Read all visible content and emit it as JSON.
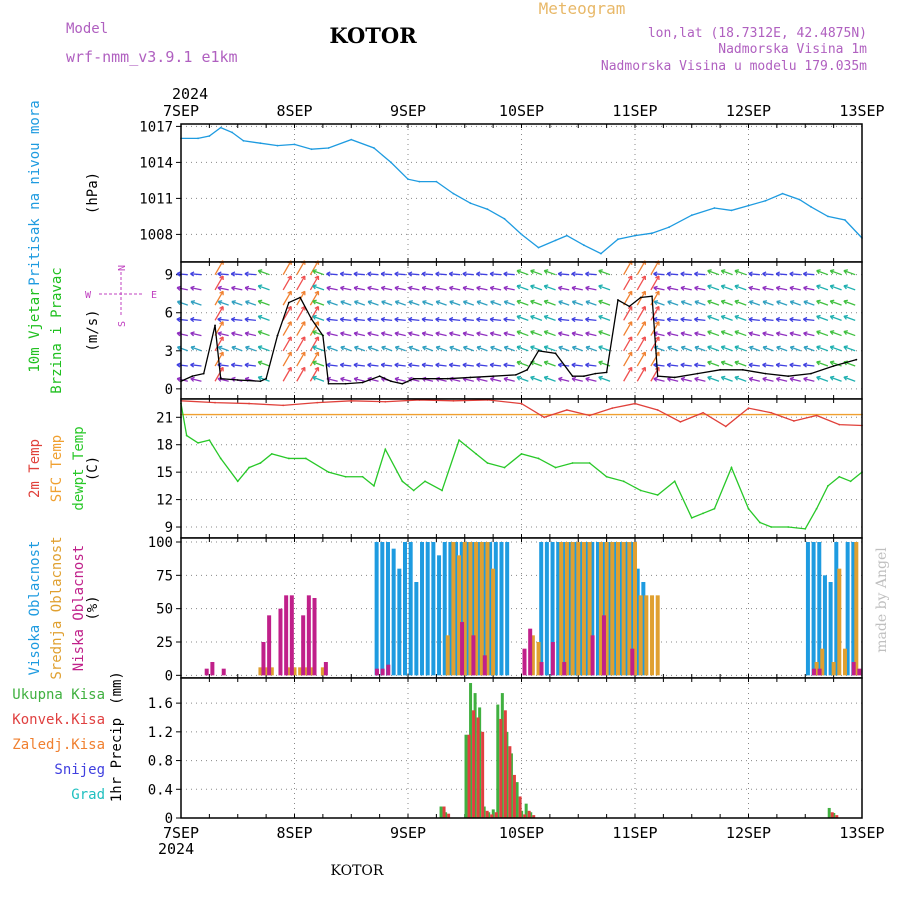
{
  "header": {
    "model_label": "Model",
    "model_name": "wrf-nmm_v3.9.1 e1km",
    "title": "KOTOR",
    "product": "Meteogram",
    "lonlat": "lon,lat (18.7312E, 42.4875N)",
    "altitude": "Nadmorska Visina 1m",
    "model_altitude": "Nadmorska Visina u modelu 179.035m",
    "footer": "KOTOR",
    "credit": "made by Angel"
  },
  "colors": {
    "pressure": "#1e9be0",
    "temp2m": "#e0403a",
    "sfc": "#f0a030",
    "dewpt": "#28c828",
    "high_cloud": "#1e9be0",
    "mid_cloud": "#e0a030",
    "low_cloud": "#c0208a",
    "precip_total": "#40b040",
    "precip_conv": "#e04040",
    "precip_frz": "#f08030",
    "snow": "#4040e0",
    "hail": "#20c0c0",
    "wind_label": "#20c020",
    "compass": "#c040c0"
  },
  "time_axis": {
    "year": "2024",
    "ticks": [
      "7SEP",
      "8SEP",
      "9SEP",
      "10SEP",
      "11SEP",
      "12SEP",
      "13SEP"
    ]
  },
  "chart_data": [
    {
      "type": "line",
      "panel": "pressure",
      "ylabel_lines": [
        "Pritisak na nivou mora"
      ],
      "unit": "(hPa)",
      "x_unit": "days since 7SEP 00Z",
      "ylim": [
        1005.7,
        1017.2
      ],
      "yticks": [
        "1017",
        "1014",
        "1011",
        "1008"
      ],
      "ytick_values": [
        1017,
        1014,
        1011,
        1008
      ],
      "grid": true,
      "series": [
        {
          "key": "pressure",
          "x": [
            0,
            0.15,
            0.25,
            0.35,
            0.45,
            0.55,
            0.7,
            0.85,
            1.0,
            1.15,
            1.3,
            1.5,
            1.7,
            1.85,
            2.0,
            2.1,
            2.25,
            2.4,
            2.55,
            2.7,
            2.85,
            3.0,
            3.15,
            3.3,
            3.4,
            3.55,
            3.7,
            3.85,
            4.0,
            4.15,
            4.3,
            4.5,
            4.7,
            4.85,
            5.0,
            5.15,
            5.3,
            5.45,
            5.55,
            5.7,
            5.85,
            6.0
          ],
          "values": [
            1016.0,
            1016.0,
            1016.2,
            1016.9,
            1016.5,
            1015.8,
            1015.6,
            1015.4,
            1015.5,
            1015.1,
            1015.2,
            1015.9,
            1015.2,
            1014.0,
            1012.6,
            1012.4,
            1012.4,
            1011.4,
            1010.6,
            1010.1,
            1009.3,
            1008.0,
            1006.9,
            1007.5,
            1007.9,
            1007.1,
            1006.4,
            1007.6,
            1007.9,
            1008.1,
            1008.6,
            1009.6,
            1010.2,
            1010.0,
            1010.4,
            1010.8,
            1011.4,
            1010.9,
            1010.3,
            1009.5,
            1009.2,
            1007.7
          ]
        }
      ]
    },
    {
      "type": "line",
      "panel": "wind",
      "ylabel_lines": [
        "10m Vjetar",
        "Brzina i Pravac"
      ],
      "unit": "(m/s)",
      "x_unit": "days since 7SEP 00Z",
      "ylim": [
        -0.8,
        10
      ],
      "yticks": [
        "9",
        "6",
        "3",
        "0"
      ],
      "ytick_values": [
        9,
        6,
        3,
        0
      ],
      "grid": true,
      "compass": [
        "N",
        "W",
        "E",
        "S"
      ],
      "series": [
        {
          "key": "wind_speed",
          "x": [
            0,
            0.1,
            0.2,
            0.3,
            0.35,
            0.5,
            0.7,
            0.75,
            0.85,
            0.95,
            1.05,
            1.15,
            1.25,
            1.3,
            1.45,
            1.6,
            1.75,
            1.85,
            1.95,
            2.05,
            2.15,
            2.35,
            2.55,
            2.75,
            2.95,
            3.05,
            3.15,
            3.3,
            3.45,
            3.55,
            3.65,
            3.75,
            3.85,
            3.95,
            4.05,
            4.15,
            4.2,
            4.35,
            4.55,
            4.75,
            4.95,
            5.15,
            5.35,
            5.55,
            5.75,
            5.95
          ],
          "values": [
            0.6,
            1.0,
            1.2,
            5.0,
            0.8,
            0.7,
            0.6,
            0.8,
            4.2,
            6.8,
            7.2,
            5.5,
            4.2,
            0.4,
            0.4,
            0.5,
            1.0,
            0.6,
            0.4,
            0.8,
            0.8,
            0.8,
            0.9,
            1.0,
            1.1,
            1.5,
            3.0,
            2.8,
            1.0,
            1.0,
            1.2,
            1.3,
            7.0,
            6.5,
            7.2,
            7.3,
            1.0,
            0.9,
            1.2,
            1.5,
            1.5,
            1.2,
            1.0,
            1.2,
            1.8,
            2.3
          ]
        }
      ]
    },
    {
      "type": "line",
      "panel": "temperature",
      "ylabel_lines": [
        "2m Temp",
        "SFC Temp",
        "dewpt Temp"
      ],
      "unit": "(C)",
      "x_unit": "days since 7SEP 00Z",
      "ylim": [
        7.8,
        23.0
      ],
      "yticks": [
        "21",
        "18",
        "15",
        "12",
        "9"
      ],
      "ytick_values": [
        21,
        18,
        15,
        12,
        9
      ],
      "grid": true,
      "series": [
        {
          "key": "sfc_temp",
          "x": [
            0,
            6.0
          ],
          "values": [
            21.3,
            21.3
          ]
        },
        {
          "key": "temp2m",
          "x": [
            0,
            0.3,
            0.6,
            0.9,
            1.2,
            1.5,
            1.8,
            2.1,
            2.4,
            2.7,
            3.0,
            3.2,
            3.4,
            3.6,
            3.8,
            4.0,
            4.2,
            4.4,
            4.6,
            4.8,
            5.0,
            5.2,
            5.4,
            5.6,
            5.8,
            6.0
          ],
          "values": [
            22.8,
            22.6,
            22.5,
            22.3,
            22.6,
            22.8,
            22.7,
            22.9,
            22.8,
            22.9,
            22.5,
            21.0,
            21.8,
            21.2,
            22.0,
            22.5,
            21.8,
            20.5,
            21.5,
            20.0,
            22.0,
            21.5,
            20.6,
            21.2,
            20.2,
            20.1
          ]
        },
        {
          "key": "dewpt",
          "x": [
            0,
            0.05,
            0.15,
            0.25,
            0.35,
            0.5,
            0.6,
            0.7,
            0.8,
            0.95,
            1.1,
            1.3,
            1.45,
            1.6,
            1.7,
            1.8,
            1.95,
            2.05,
            2.15,
            2.3,
            2.45,
            2.6,
            2.7,
            2.85,
            3.0,
            3.15,
            3.3,
            3.45,
            3.6,
            3.75,
            3.9,
            4.05,
            4.2,
            4.35,
            4.5,
            4.6,
            4.7,
            4.85,
            5.0,
            5.1,
            5.2,
            5.35,
            5.5,
            5.6,
            5.7,
            5.8,
            5.9,
            6.0
          ],
          "values": [
            22.5,
            19.0,
            18.2,
            18.5,
            16.5,
            14.0,
            15.5,
            16.0,
            17.0,
            16.5,
            16.5,
            15.0,
            14.5,
            14.5,
            13.5,
            17.5,
            14.0,
            13.0,
            14.0,
            13.0,
            18.5,
            17.0,
            16.0,
            15.5,
            17.0,
            16.5,
            15.5,
            16.0,
            16.0,
            14.5,
            14.0,
            13.0,
            12.5,
            14.0,
            10.0,
            10.5,
            11.0,
            15.5,
            11.0,
            9.5,
            9.0,
            9.0,
            8.8,
            11.0,
            13.5,
            14.5,
            14.0,
            15.0
          ]
        }
      ]
    },
    {
      "type": "bar",
      "panel": "cloud",
      "ylabel_lines": [
        "Visoka Oblacnost",
        "Srednja Oblacnost",
        "Niska Oblacnost"
      ],
      "unit": "(%)",
      "x_unit": "days since 7SEP 00Z",
      "ylim": [
        -2,
        103
      ],
      "yticks": [
        "100",
        "75",
        "50",
        "25",
        "0"
      ],
      "ytick_values": [
        100,
        75,
        50,
        25,
        0
      ],
      "grid": true,
      "series": [
        {
          "key": "high",
          "x": [
            1.75,
            1.8,
            1.85,
            1.9,
            1.95,
            2.0,
            2.05,
            2.1,
            2.15,
            2.2,
            2.25,
            2.3,
            2.35,
            2.4,
            2.45,
            2.5,
            2.55,
            2.6,
            2.65,
            2.7,
            2.75,
            2.8,
            2.85,
            2.9,
            3.2,
            3.25,
            3.3,
            3.35,
            3.4,
            3.45,
            3.5,
            3.55,
            3.6,
            3.65,
            3.7,
            3.75,
            3.8,
            3.85,
            3.9,
            3.95,
            4.0,
            4.05,
            4.1,
            5.55,
            5.6,
            5.65,
            5.7,
            5.75,
            5.8,
            5.9,
            5.95
          ],
          "values": [
            100,
            100,
            100,
            95,
            80,
            100,
            100,
            70,
            100,
            100,
            100,
            90,
            100,
            100,
            100,
            100,
            100,
            100,
            100,
            100,
            100,
            100,
            100,
            100,
            100,
            100,
            100,
            100,
            100,
            100,
            100,
            100,
            100,
            100,
            100,
            100,
            100,
            100,
            100,
            100,
            100,
            80,
            70,
            100,
            100,
            100,
            75,
            70,
            100,
            100,
            100
          ]
        },
        {
          "key": "mid",
          "x": [
            0.7,
            0.75,
            0.8,
            0.95,
            1.0,
            1.05,
            1.1,
            1.15,
            1.25,
            2.35,
            2.4,
            2.45,
            2.5,
            2.55,
            2.6,
            2.65,
            2.7,
            2.75,
            3.1,
            3.15,
            3.35,
            3.4,
            3.45,
            3.5,
            3.55,
            3.6,
            3.7,
            3.75,
            3.8,
            3.85,
            3.9,
            3.95,
            4.0,
            4.05,
            4.1,
            4.15,
            4.2,
            5.6,
            5.65,
            5.75,
            5.8,
            5.85,
            5.95
          ],
          "values": [
            6,
            6,
            6,
            6,
            6,
            6,
            6,
            6,
            6,
            30,
            100,
            90,
            100,
            100,
            100,
            100,
            100,
            80,
            30,
            25,
            100,
            100,
            100,
            100,
            100,
            100,
            100,
            100,
            100,
            100,
            100,
            100,
            100,
            60,
            60,
            60,
            60,
            10,
            20,
            10,
            80,
            20,
            100
          ]
        },
        {
          "key": "low",
          "x": [
            0.2,
            0.25,
            0.35,
            0.7,
            0.75,
            0.85,
            0.9,
            0.95,
            1.05,
            1.1,
            1.15,
            1.25,
            1.7,
            1.75,
            1.8,
            2.45,
            2.55,
            2.65,
            3.0,
            3.05,
            3.15,
            3.25,
            3.35,
            3.6,
            3.7,
            3.95,
            5.55,
            5.6,
            5.9,
            5.95
          ],
          "values": [
            5,
            10,
            5,
            25,
            45,
            50,
            60,
            60,
            45,
            60,
            58,
            10,
            5,
            5,
            8,
            40,
            30,
            15,
            20,
            35,
            10,
            25,
            10,
            30,
            45,
            20,
            5,
            5,
            10,
            5
          ]
        }
      ]
    },
    {
      "type": "bar",
      "panel": "precip",
      "ylabel_lines": [
        "1hr Precip"
      ],
      "unit": "(mm)",
      "x_unit": "days since 7SEP 00Z",
      "ylim": [
        0,
        1.95
      ],
      "yticks": [
        "1.6",
        "1.2",
        "0.8",
        "0.4",
        "0"
      ],
      "ytick_values": [
        1.6,
        1.2,
        0.8,
        0.4,
        0
      ],
      "grid": true,
      "legend": [
        "Ukupna Kisa",
        "Konvek.Kisa",
        "Zaledj.Kisa",
        "Snijeg",
        "Grad"
      ],
      "series": [
        {
          "key": "total",
          "x": [
            2.3,
            2.34,
            2.52,
            2.56,
            2.6,
            2.64,
            2.68,
            2.72,
            2.76,
            2.8,
            2.84,
            2.88,
            2.92,
            2.97,
            3.01,
            3.05,
            3.09,
            5.72,
            5.76
          ],
          "values": [
            0.16,
            0.08,
            1.16,
            1.88,
            1.74,
            1.54,
            0.16,
            0.08,
            0.12,
            1.58,
            1.74,
            1.2,
            0.9,
            0.5,
            0.1,
            0.2,
            0.08,
            0.14,
            0.07
          ]
        },
        {
          "key": "conv",
          "x": [
            2.3,
            2.34,
            2.52,
            2.56,
            2.6,
            2.64,
            2.68,
            2.72,
            2.76,
            2.8,
            2.84,
            2.88,
            2.92,
            2.97,
            3.01,
            3.05,
            3.09,
            5.72,
            5.76
          ],
          "values": [
            0.16,
            0.06,
            1.16,
            1.5,
            1.4,
            1.2,
            0.1,
            0.05,
            0.08,
            1.38,
            1.5,
            1.0,
            0.6,
            0.3,
            0.05,
            0.1,
            0.04,
            0.08,
            0.04
          ]
        }
      ]
    }
  ]
}
